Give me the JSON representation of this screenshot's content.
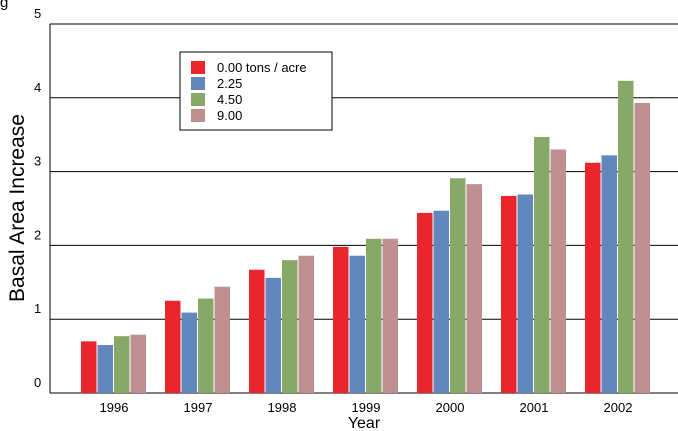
{
  "page_fragment": "g",
  "chart_data": {
    "type": "bar",
    "title": "",
    "xlabel": "Year",
    "ylabel": "Basal Area Increase",
    "ylim": [
      0,
      5
    ],
    "yticks": [
      "0",
      "1",
      "2",
      "3",
      "4",
      "5"
    ],
    "grid": true,
    "legend_position": "top-left",
    "categories": [
      "1996",
      "1997",
      "1998",
      "1999",
      "2000",
      "2001",
      "2002"
    ],
    "series": [
      {
        "name": "0.00 tons / acre",
        "color": "#e8262b",
        "values": [
          0.7,
          1.25,
          1.67,
          1.98,
          2.44,
          2.67,
          3.12
        ]
      },
      {
        "name": "2.25",
        "color": "#6287bd",
        "values": [
          0.65,
          1.09,
          1.56,
          1.86,
          2.47,
          2.69,
          3.22
        ]
      },
      {
        "name": "4.50",
        "color": "#88a86a",
        "values": [
          0.77,
          1.28,
          1.8,
          2.09,
          2.91,
          3.47,
          4.23
        ]
      },
      {
        "name": "9.00",
        "color": "#c09090",
        "values": [
          0.79,
          1.44,
          1.86,
          2.09,
          2.83,
          3.3,
          3.93
        ]
      }
    ]
  }
}
